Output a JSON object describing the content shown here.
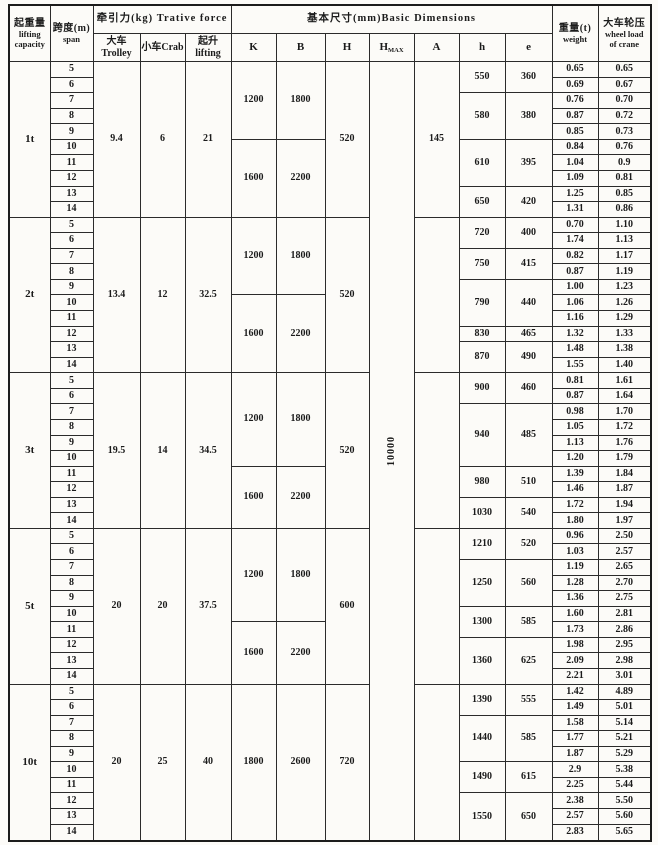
{
  "colors": {
    "background": "#fcfbf8",
    "border": "#2b2b2b",
    "text": "#1b1b1b"
  },
  "table": {
    "header": {
      "capacity_cn": "起重量",
      "capacity_en": "lifting\ncapacity",
      "span_cn": "跨度(m)",
      "span_en": "span",
      "force_group": "牵引力(kg) Trative force",
      "force_trolley": "大车Trolley",
      "force_crab": "小车Crab",
      "force_lifting": "起升lifting",
      "dims_group": "基本尺寸(mm)Basic Dimensions",
      "col_k": "K",
      "col_b": "B",
      "col_h": "H",
      "col_hmax_main": "H",
      "col_hmax_sub": "MAX",
      "col_a": "A",
      "col_h_small": "h",
      "col_e": "e",
      "weight_cn": "重量(t)",
      "weight_en": "weight",
      "wheel_cn": "大车轮压",
      "wheel_en": "wheel load\nof crane"
    },
    "hmax_value": "10000",
    "groups": [
      {
        "capacity": "1t",
        "spans": [
          "5",
          "6",
          "7",
          "8",
          "9",
          "10",
          "11",
          "12",
          "13",
          "14"
        ],
        "trolley": "9.4",
        "crab": "6",
        "lifting": "21",
        "k_b_segments": [
          {
            "rows": 5,
            "k": "1200",
            "b": "1800"
          },
          {
            "rows": 5,
            "k": "1600",
            "b": "2200"
          }
        ],
        "h_dim": "520",
        "a_dim": "145",
        "h_e_segments": [
          {
            "rows": 2,
            "h": "550",
            "e": "360"
          },
          {
            "rows": 3,
            "h": "580",
            "e": "380"
          },
          {
            "rows": 3,
            "h": "610",
            "e": "395"
          },
          {
            "rows": 2,
            "h": "650",
            "e": "420"
          }
        ],
        "weights": [
          "0.65",
          "0.69",
          "0.76",
          "0.87",
          "0.85",
          "0.84",
          "1.04",
          "1.09",
          "1.25",
          "1.31"
        ],
        "wheel_loads": [
          "0.65",
          "0.67",
          "0.70",
          "0.72",
          "0.73",
          "0.76",
          "0.9",
          "0.81",
          "0.85",
          "0.86"
        ]
      },
      {
        "capacity": "2t",
        "spans": [
          "5",
          "6",
          "7",
          "8",
          "9",
          "10",
          "11",
          "12",
          "13",
          "14"
        ],
        "trolley": "13.4",
        "crab": "12",
        "lifting": "32.5",
        "k_b_segments": [
          {
            "rows": 5,
            "k": "1200",
            "b": "1800"
          },
          {
            "rows": 5,
            "k": "1600",
            "b": "2200"
          }
        ],
        "h_dim": "520",
        "a_dim": "",
        "h_e_segments": [
          {
            "rows": 2,
            "h": "720",
            "e": "400"
          },
          {
            "rows": 2,
            "h": "750",
            "e": "415"
          },
          {
            "rows": 3,
            "h": "790",
            "e": "440"
          },
          {
            "rows": 1,
            "h": "830",
            "e": "465"
          },
          {
            "rows": 2,
            "h": "870",
            "e": "490"
          }
        ],
        "weights": [
          "0.70",
          "1.74",
          "0.82",
          "0.87",
          "1.00",
          "1.06",
          "1.16",
          "1.32",
          "1.48",
          "1.55"
        ],
        "wheel_loads": [
          "1.10",
          "1.13",
          "1.17",
          "1.19",
          "1.23",
          "1.26",
          "1.29",
          "1.33",
          "1.38",
          "1.40"
        ]
      },
      {
        "capacity": "3t",
        "spans": [
          "5",
          "6",
          "7",
          "8",
          "9",
          "10",
          "11",
          "12",
          "13",
          "14"
        ],
        "trolley": "19.5",
        "crab": "14",
        "lifting": "34.5",
        "k_b_segments": [
          {
            "rows": 6,
            "k": "1200",
            "b": "1800"
          },
          {
            "rows": 4,
            "k": "1600",
            "b": "2200"
          }
        ],
        "h_dim": "520",
        "a_dim": "",
        "h_e_segments": [
          {
            "rows": 2,
            "h": "900",
            "e": "460"
          },
          {
            "rows": 4,
            "h": "940",
            "e": "485"
          },
          {
            "rows": 2,
            "h": "980",
            "e": "510"
          },
          {
            "rows": 2,
            "h": "1030",
            "e": "540"
          }
        ],
        "weights": [
          "0.81",
          "0.87",
          "0.98",
          "1.05",
          "1.13",
          "1.20",
          "1.39",
          "1.46",
          "1.72",
          "1.80"
        ],
        "wheel_loads": [
          "1.61",
          "1.64",
          "1.70",
          "1.72",
          "1.76",
          "1.79",
          "1.84",
          "1.87",
          "1.94",
          "1.97"
        ]
      },
      {
        "capacity": "5t",
        "spans": [
          "5",
          "6",
          "7",
          "8",
          "9",
          "10",
          "11",
          "12",
          "13",
          "14"
        ],
        "trolley": "20",
        "crab": "20",
        "lifting": "37.5",
        "k_b_segments": [
          {
            "rows": 6,
            "k": "1200",
            "b": "1800"
          },
          {
            "rows": 4,
            "k": "1600",
            "b": "2200"
          }
        ],
        "h_dim": "600",
        "a_dim": "",
        "h_e_segments": [
          {
            "rows": 2,
            "h": "1210",
            "e": "520"
          },
          {
            "rows": 3,
            "h": "1250",
            "e": "560"
          },
          {
            "rows": 2,
            "h": "1300",
            "e": "585"
          },
          {
            "rows": 3,
            "h": "1360",
            "e": "625"
          }
        ],
        "weights": [
          "0.96",
          "1.03",
          "1.19",
          "1.28",
          "1.36",
          "1.60",
          "1.73",
          "1.98",
          "2.09",
          "2.21"
        ],
        "wheel_loads": [
          "2.50",
          "2.57",
          "2.65",
          "2.70",
          "2.75",
          "2.81",
          "2.86",
          "2.95",
          "2.98",
          "3.01"
        ]
      },
      {
        "capacity": "10t",
        "spans": [
          "5",
          "6",
          "7",
          "8",
          "9",
          "10",
          "11",
          "12",
          "13",
          "14"
        ],
        "trolley": "20",
        "crab": "25",
        "lifting": "40",
        "k_b_segments": [
          {
            "rows": 10,
            "k": "1800",
            "b": "2600"
          }
        ],
        "h_dim": "720",
        "a_dim": "",
        "h_e_segments": [
          {
            "rows": 2,
            "h": "1390",
            "e": "555"
          },
          {
            "rows": 3,
            "h": "1440",
            "e": "585"
          },
          {
            "rows": 2,
            "h": "1490",
            "e": "615"
          },
          {
            "rows": 3,
            "h": "1550",
            "e": "650"
          }
        ],
        "weights": [
          "1.42",
          "1.49",
          "1.58",
          "1.77",
          "1.87",
          "2.9",
          "2.25",
          "2.38",
          "2.57",
          "2.83"
        ],
        "wheel_loads": [
          "4.89",
          "5.01",
          "5.14",
          "5.21",
          "5.29",
          "5.38",
          "5.44",
          "5.50",
          "5.60",
          "5.65"
        ]
      }
    ]
  }
}
